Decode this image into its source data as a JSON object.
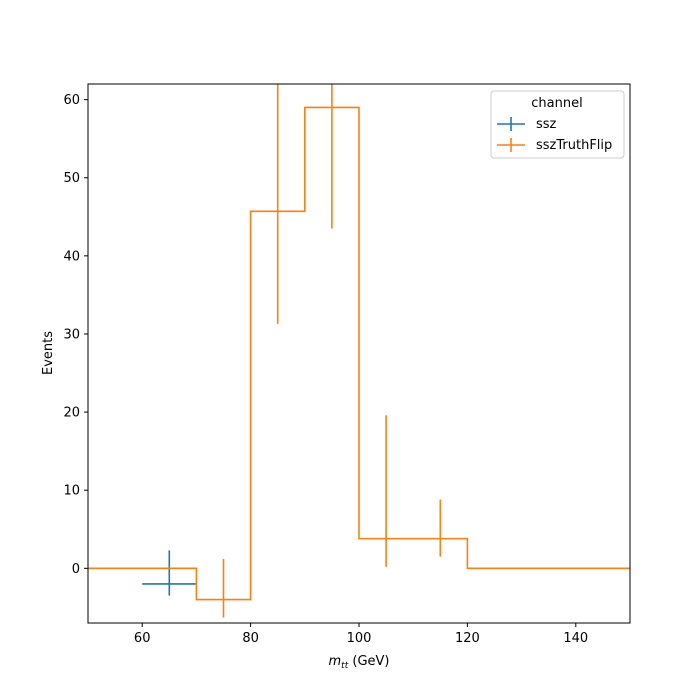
{
  "chart_data": {
    "type": "line",
    "subtype": "step-histogram-with-errorbars",
    "title": "",
    "xlabel": "m_tt (GeV)",
    "xlabel_main": "m",
    "xlabel_sub": "tt",
    "xlabel_unit": " (GeV)",
    "ylabel": "Events",
    "xlim": [
      50,
      150
    ],
    "ylim": [
      -7,
      62
    ],
    "xticks": [
      60,
      80,
      100,
      120,
      140
    ],
    "yticks": [
      0,
      10,
      20,
      30,
      40,
      50,
      60
    ],
    "grid": false,
    "legend": {
      "title": "channel",
      "position": "top-right"
    },
    "series": [
      {
        "name": "ssz",
        "color": "#1f77b4",
        "bins": [
          [
            60,
            70
          ]
        ],
        "values": [
          -2.0
        ],
        "errors": [
          [
            -3.5,
            2.3
          ]
        ]
      },
      {
        "name": "sszTruthFlip",
        "color": "#ff7f0e",
        "bins": [
          [
            50,
            60
          ],
          [
            60,
            70
          ],
          [
            70,
            80
          ],
          [
            80,
            90
          ],
          [
            90,
            100
          ],
          [
            100,
            110
          ],
          [
            110,
            120
          ],
          [
            120,
            130
          ],
          [
            130,
            140
          ],
          [
            140,
            150
          ]
        ],
        "values": [
          0,
          0,
          -4.0,
          45.7,
          59.0,
          3.8,
          3.8,
          0,
          0,
          0
        ],
        "errors": [
          null,
          null,
          [
            -6.3,
            1.2
          ],
          [
            31.3,
            62
          ],
          [
            43.5,
            62
          ],
          [
            0.2,
            19.6
          ],
          [
            1.5,
            8.8
          ],
          null,
          null,
          null
        ]
      }
    ]
  }
}
